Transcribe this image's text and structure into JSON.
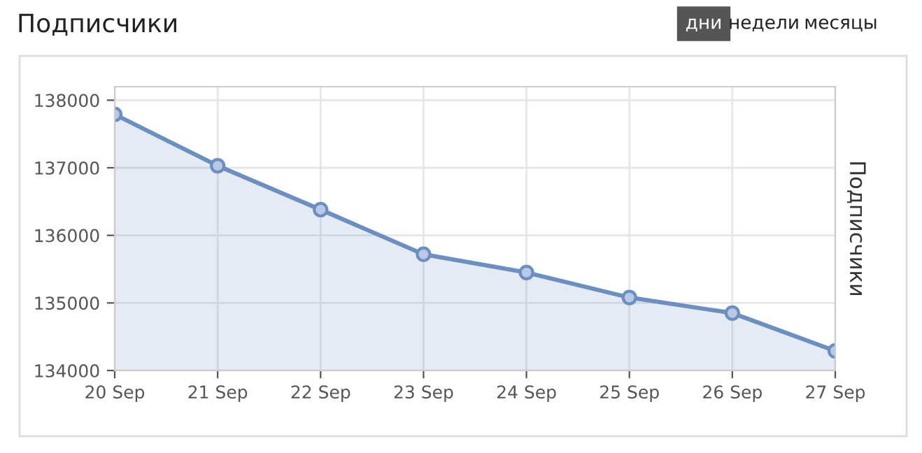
{
  "chart_data": {
    "type": "area",
    "title": "Подписчики",
    "ylabel": "Подписчики",
    "categories": [
      "20 Sep",
      "21 Sep",
      "22 Sep",
      "23 Sep",
      "24 Sep",
      "25 Sep",
      "26 Sep",
      "27 Sep"
    ],
    "series": [
      {
        "color": "#6a8fc0",
        "values": [
          137790,
          137030,
          136380,
          135720,
          135450,
          135080,
          134850,
          134290
        ]
      }
    ],
    "ylim": [
      134000,
      138200
    ],
    "yticks": [
      134000,
      135000,
      136000,
      137000,
      138000
    ],
    "grid": true,
    "marker": "circle",
    "line_style": "solid",
    "annotations": [
      "дни",
      "недели",
      "месяцы"
    ]
  }
}
